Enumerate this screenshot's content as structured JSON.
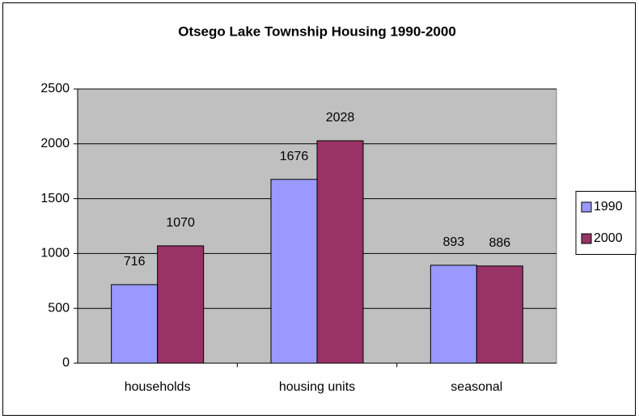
{
  "chart_data": {
    "type": "bar",
    "title": "Otsego Lake Township Housing 1990-2000",
    "categories": [
      "households",
      "housing units",
      "seasonal"
    ],
    "series": [
      {
        "name": "1990",
        "color": "#9999ff",
        "values": [
          716,
          1676,
          893
        ]
      },
      {
        "name": "2000",
        "color": "#993366",
        "values": [
          1070,
          2028,
          886
        ]
      }
    ],
    "ylim": [
      0,
      2500
    ],
    "yticks": [
      0,
      500,
      1000,
      1500,
      2000,
      2500
    ],
    "grid": true,
    "legend": "right"
  }
}
